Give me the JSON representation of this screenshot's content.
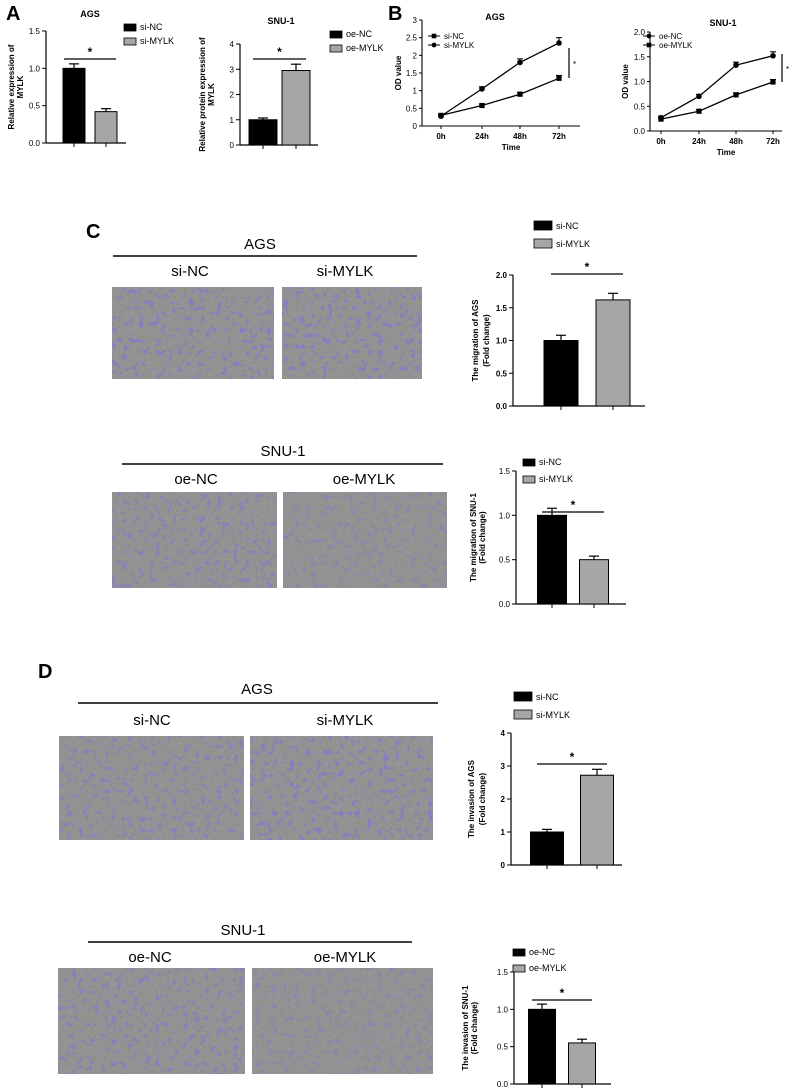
{
  "panel_labels": {
    "A": "A",
    "B": "B",
    "C": "C",
    "D": "D"
  },
  "colors": {
    "black_bar": "#000000",
    "grey_bar": "#a6a6a6",
    "micro_bg": "#8c8c87",
    "stain": "#4a3e9a"
  },
  "images": {
    "C_AGS": {
      "title": "AGS",
      "left": "si-NC",
      "right": "si-MYLK"
    },
    "C_SNU": {
      "title": "SNU-1",
      "left": "oe-NC",
      "right": "oe-MYLK"
    },
    "D_AGS": {
      "title": "AGS",
      "left": "si-NC",
      "right": "si-MYLK"
    },
    "D_SNU": {
      "title": "SNU-1",
      "left": "oe-NC",
      "right": "oe-MYLK"
    }
  },
  "chart_data": [
    {
      "id": "A1",
      "type": "bar",
      "title": "AGS",
      "xlabel": "",
      "ylabel": "Relative expression of MYLK",
      "categories": [
        "si-NC",
        "si-MYLK"
      ],
      "values": [
        1.0,
        0.42
      ],
      "errors": [
        0.06,
        0.04
      ],
      "ylim": [
        0,
        1.5
      ],
      "yticks": [
        0.0,
        0.5,
        1.0,
        1.5
      ],
      "ytick_labels": [
        "0.0",
        "0.5",
        "1.0",
        "1.5"
      ],
      "legend": [
        "si-NC",
        "si-MYLK"
      ],
      "legend_position": "top-right",
      "significance": "*"
    },
    {
      "id": "A2",
      "type": "bar",
      "title": "SNU-1",
      "xlabel": "",
      "ylabel": "Relative protein expression of MYLK",
      "categories": [
        "oe-NC",
        "oe-MYLK"
      ],
      "values": [
        1.0,
        2.95
      ],
      "errors": [
        0.07,
        0.25
      ],
      "ylim": [
        0,
        4
      ],
      "yticks": [
        0,
        1,
        2,
        3,
        4
      ],
      "ytick_labels": [
        "0",
        "1",
        "2",
        "3",
        "4"
      ],
      "legend": [
        "oe-NC",
        "oe-MYLK"
      ],
      "legend_position": "top-right",
      "significance": "*"
    },
    {
      "id": "B1",
      "type": "line",
      "title": "AGS",
      "xlabel": "Time",
      "ylabel": "OD value",
      "x": [
        "0h",
        "24h",
        "48h",
        "72h"
      ],
      "ylim": [
        0,
        3
      ],
      "yticks": [
        0,
        0.5,
        1,
        1.5,
        2,
        2.5,
        3
      ],
      "ytick_labels": [
        "0",
        "0.5",
        "1",
        "1.5",
        "2",
        "2.5",
        "3"
      ],
      "series": [
        {
          "name": "si-NC",
          "marker": "square",
          "values": [
            0.3,
            0.58,
            0.9,
            1.35
          ],
          "errors": [
            0.03,
            0.04,
            0.05,
            0.08
          ]
        },
        {
          "name": "si-MYLK",
          "marker": "circle",
          "values": [
            0.28,
            1.05,
            1.8,
            2.35
          ],
          "errors": [
            0.03,
            0.06,
            0.1,
            0.15
          ]
        }
      ],
      "legend_position": "top-left",
      "significance": "*"
    },
    {
      "id": "B2",
      "type": "line",
      "title": "SNU-1",
      "xlabel": "Time",
      "ylabel": "OD value",
      "x": [
        "0h",
        "24h",
        "48h",
        "72h"
      ],
      "ylim": [
        0,
        2
      ],
      "yticks": [
        0,
        0.5,
        1,
        1.5,
        2
      ],
      "ytick_labels": [
        "0.0",
        "0.5",
        "1.0",
        "1.5",
        "2.0"
      ],
      "series": [
        {
          "name": "oe-NC",
          "marker": "circle",
          "values": [
            0.27,
            0.7,
            1.33,
            1.52
          ],
          "errors": [
            0.03,
            0.04,
            0.06,
            0.08
          ]
        },
        {
          "name": "oe-MYLK",
          "marker": "square",
          "values": [
            0.24,
            0.4,
            0.73,
            0.99
          ],
          "errors": [
            0.02,
            0.03,
            0.04,
            0.05
          ]
        }
      ],
      "legend_position": "top-left",
      "significance": "*"
    },
    {
      "id": "C1",
      "type": "bar",
      "title": "",
      "xlabel": "",
      "ylabel": "The migration of AGS (Fold change)",
      "categories": [
        "si-NC",
        "si-MYLK"
      ],
      "values": [
        1.0,
        1.62
      ],
      "errors": [
        0.08,
        0.1
      ],
      "ylim": [
        0,
        2
      ],
      "yticks": [
        0,
        0.5,
        1,
        1.5,
        2
      ],
      "ytick_labels": [
        "0.0",
        "0.5",
        "1.0",
        "1.5",
        "2.0"
      ],
      "legend": [
        "si-NC",
        "si-MYLK"
      ],
      "legend_position": "top",
      "significance": "*"
    },
    {
      "id": "C2",
      "type": "bar",
      "title": "",
      "xlabel": "",
      "ylabel": "The migration of SNU-1 (Fold change)",
      "categories": [
        "si-NC",
        "si-MYLK"
      ],
      "values": [
        1.0,
        0.5
      ],
      "errors": [
        0.08,
        0.04
      ],
      "ylim": [
        0,
        1.5
      ],
      "yticks": [
        0,
        0.5,
        1,
        1.5
      ],
      "ytick_labels": [
        "0.0",
        "0.5",
        "1.0",
        "1.5"
      ],
      "legend": [
        "si-NC",
        "si-MYLK"
      ],
      "legend_position": "top",
      "significance": "*"
    },
    {
      "id": "D1",
      "type": "bar",
      "title": "",
      "xlabel": "",
      "ylabel": "The invasion of AGS (Fold change)",
      "categories": [
        "si-NC",
        "si-MYLK"
      ],
      "values": [
        1.0,
        2.72
      ],
      "errors": [
        0.08,
        0.18
      ],
      "ylim": [
        0,
        4
      ],
      "yticks": [
        0,
        1,
        2,
        3,
        4
      ],
      "ytick_labels": [
        "0",
        "1",
        "2",
        "3",
        "4"
      ],
      "legend": [
        "si-NC",
        "si-MYLK"
      ],
      "legend_position": "top",
      "significance": "*"
    },
    {
      "id": "D2",
      "type": "bar",
      "title": "",
      "xlabel": "",
      "ylabel": "The invasion of SNU-1 (Fold change)",
      "categories": [
        "oe-NC",
        "oe-MYLK"
      ],
      "values": [
        1.0,
        0.55
      ],
      "errors": [
        0.07,
        0.05
      ],
      "ylim": [
        0,
        1.5
      ],
      "yticks": [
        0,
        0.5,
        1,
        1.5
      ],
      "ytick_labels": [
        "0.0",
        "0.5",
        "1.0",
        "1.5"
      ],
      "legend": [
        "oe-NC",
        "oe-MYLK"
      ],
      "legend_position": "top",
      "significance": "*"
    }
  ]
}
